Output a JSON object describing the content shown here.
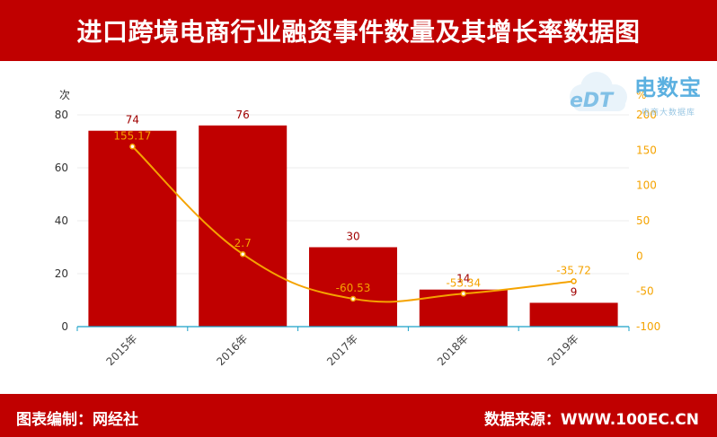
{
  "header": {
    "title": "进口跨境电商行业融资事件数量及其增长率数据图"
  },
  "footer": {
    "left_text": "图表编制：网经社",
    "right_text": "数据来源：WWW.100EC.CN"
  },
  "watermark": {
    "name": "电数宝",
    "badge": "eDT",
    "subtitle": "电商大数据库"
  },
  "colors": {
    "brand": "#c00000",
    "bar": "#c00000",
    "line": "#f5a300",
    "axis_right": "#f5a300"
  },
  "chart_data": {
    "type": "bar",
    "categories": [
      "2015年",
      "2016年",
      "2017年",
      "2018年",
      "2019年"
    ],
    "series": [
      {
        "type": "bar",
        "axis": "left",
        "values": [
          74,
          76,
          30,
          14,
          9
        ]
      },
      {
        "type": "line",
        "axis": "right",
        "values": [
          155.17,
          2.7,
          -60.53,
          -53.34,
          -35.72
        ]
      }
    ],
    "y_left": {
      "label": "次",
      "min": 0,
      "max": 80,
      "ticks": [
        0,
        20,
        40,
        60,
        80
      ]
    },
    "y_right": {
      "label": "%",
      "min": -100,
      "max": 200,
      "ticks": [
        -100,
        -50,
        0,
        50,
        100,
        150,
        200
      ]
    },
    "grid": true,
    "legend": "none"
  }
}
